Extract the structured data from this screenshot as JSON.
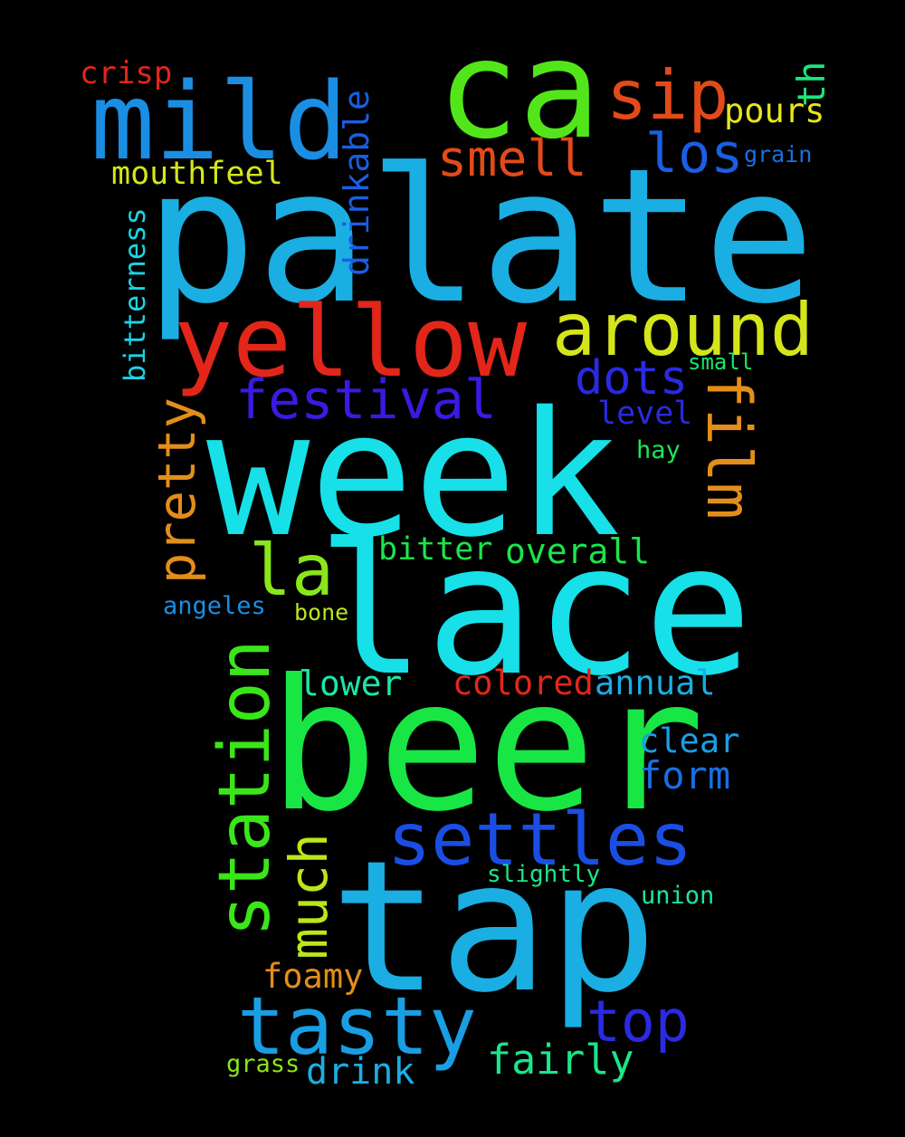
{
  "words": {
    "palate": {
      "text": "palate",
      "color": "#1aaee3"
    },
    "week": {
      "text": "week",
      "color": "#17e0e8"
    },
    "lace": {
      "text": "lace",
      "color": "#17e0e8"
    },
    "beer": {
      "text": "beer",
      "color": "#18e645"
    },
    "tap": {
      "text": "tap",
      "color": "#1aaee3"
    },
    "ca": {
      "text": "ca",
      "color": "#52e61a"
    },
    "mild": {
      "text": "mild",
      "color": "#1a8ee3"
    },
    "yellow": {
      "text": "yellow",
      "color": "#e3261a"
    },
    "around": {
      "text": "around",
      "color": "#d4e61a"
    },
    "settles": {
      "text": "settles",
      "color": "#1a4ee3"
    },
    "tasty": {
      "text": "tasty",
      "color": "#1a9ee3"
    },
    "station": {
      "text": "station",
      "color": "#3ae61a"
    },
    "festival": {
      "text": "festival",
      "color": "#3a1ae3"
    },
    "film": {
      "text": "film",
      "color": "#e38e1a"
    },
    "sip": {
      "text": "sip",
      "color": "#e34a1a"
    },
    "smell": {
      "text": "smell",
      "color": "#e34a1a"
    },
    "los": {
      "text": "los",
      "color": "#1a5ee3"
    },
    "dots": {
      "text": "dots",
      "color": "#2a2ae3"
    },
    "la": {
      "text": "la",
      "color": "#8ae61a"
    },
    "pretty": {
      "text": "pretty",
      "color": "#e38e1a"
    },
    "much": {
      "text": "much",
      "color": "#bce61a"
    },
    "top": {
      "text": "top",
      "color": "#2a2ae3"
    },
    "drinkable": {
      "text": "drinkable",
      "color": "#1a5ee3"
    },
    "bitterness": {
      "text": "bitterness",
      "color": "#1ad4e3"
    },
    "mouthfeel": {
      "text": "mouthfeel",
      "color": "#d4e61a"
    },
    "pours": {
      "text": "pours",
      "color": "#e6e61a"
    },
    "th": {
      "text": "th",
      "color": "#1ae67a"
    },
    "crisp": {
      "text": "crisp",
      "color": "#e3261a"
    },
    "grain": {
      "text": "grain",
      "color": "#1a6ee3"
    },
    "level": {
      "text": "level",
      "color": "#2a2ae3"
    },
    "small": {
      "text": "small",
      "color": "#1ae66a"
    },
    "hay": {
      "text": "hay",
      "color": "#1ae65a"
    },
    "bitter": {
      "text": "bitter",
      "color": "#1ae64a"
    },
    "overall": {
      "text": "overall",
      "color": "#1ae64a"
    },
    "angeles": {
      "text": "angeles",
      "color": "#1a8ee3"
    },
    "bone": {
      "text": "bone",
      "color": "#bce61a"
    },
    "lower": {
      "text": "lower",
      "color": "#1ae6a8"
    },
    "colored": {
      "text": "colored",
      "color": "#e3261a"
    },
    "annual": {
      "text": "annual",
      "color": "#1aaee3"
    },
    "clear": {
      "text": "clear",
      "color": "#1a9ee3"
    },
    "form": {
      "text": "form",
      "color": "#1a6ee3"
    },
    "slightly": {
      "text": "slightly",
      "color": "#1ae68a"
    },
    "union": {
      "text": "union",
      "color": "#1ae69a"
    },
    "foamy": {
      "text": "foamy",
      "color": "#e38e1a"
    },
    "fairly": {
      "text": "fairly",
      "color": "#1ae68a"
    },
    "drink": {
      "text": "drink",
      "color": "#1aaee3"
    },
    "grass": {
      "text": "grass",
      "color": "#8ae61a"
    }
  }
}
